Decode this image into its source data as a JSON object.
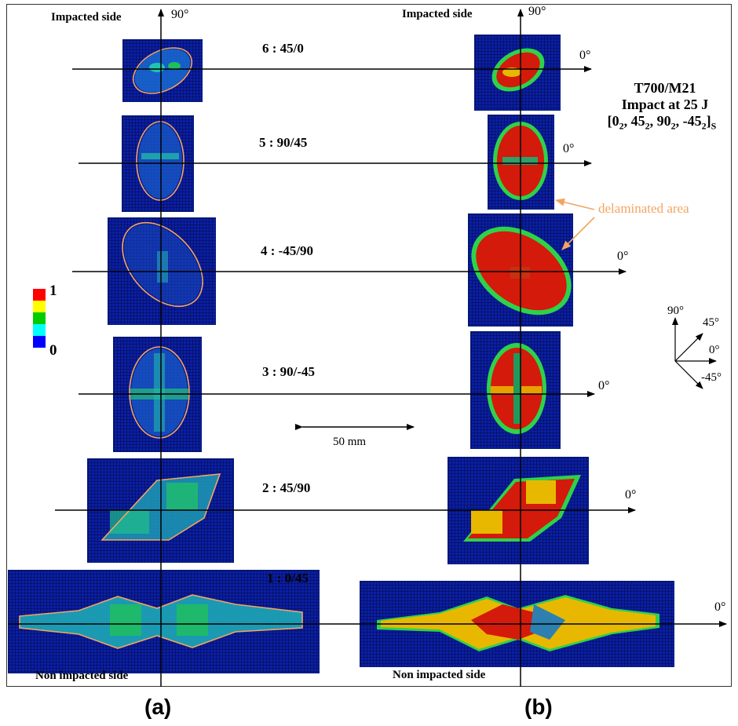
{
  "labels": {
    "impacted_side": "Impacted side",
    "non_impacted_side": "Non impacted side",
    "deg_90": "90°",
    "deg_0": "0°",
    "scale_distance": "50 mm",
    "delaminated_area": "delaminated area",
    "panel_a": "(a)",
    "panel_b": "(b)"
  },
  "specimen": {
    "material": "T700/M21",
    "impact": "Impact at 25 J",
    "layup_main": "[0",
    "layup_sub1": "2",
    "layup_mid1": ", 45",
    "layup_sub2": "2",
    "layup_mid2": ", 90",
    "layup_sub3": "2",
    "layup_mid3": ", -45",
    "layup_sub4": "2",
    "layup_end": "]",
    "layup_suffix": "S"
  },
  "interfaces": [
    {
      "label": "6 : 45/0"
    },
    {
      "label": "5 : 90/45"
    },
    {
      "label": "4 : -45/90"
    },
    {
      "label": "3 : 90/-45"
    },
    {
      "label": "2 : 45/90"
    },
    {
      "label": "1 : 0/45"
    }
  ],
  "colorscale": {
    "max_label": "1",
    "min_label": "0",
    "colors": [
      "#ff0000",
      "#ffff00",
      "#00cc00",
      "#00ffff",
      "#0000ff"
    ]
  },
  "orientation_key": {
    "labels": [
      "90°",
      "45°",
      "0°",
      "-45°"
    ]
  },
  "colors": {
    "outline": "#f4a460",
    "map_background": "#0a1fa6",
    "damage_high": "#d41a0a"
  }
}
